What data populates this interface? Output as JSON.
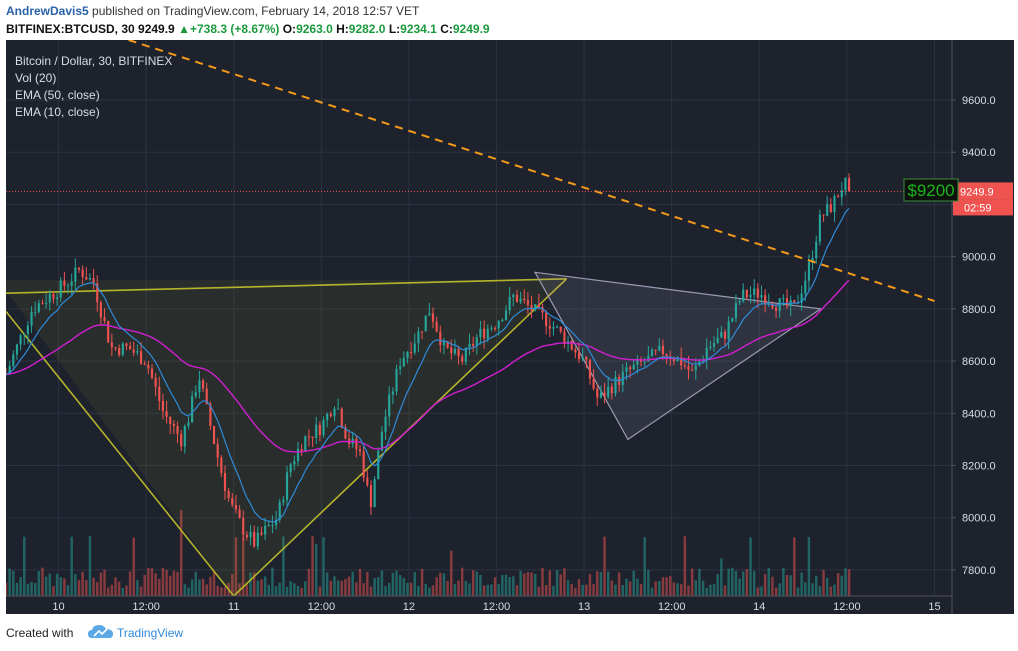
{
  "header": {
    "author": "AndrewDavis5",
    "published": "published on TradingView.com, February 14, 2018 12:57 VET",
    "symbol": "BITFINEX:BTCUSD, 30",
    "last": "9249.9",
    "change_arrow": "▲",
    "change": "+738.3 (+8.67%)",
    "o_label": "O:",
    "o": "9263.0",
    "h_label": "H:",
    "h": "9282.0",
    "l_label": "L:",
    "l": "9234.1",
    "c_label": "C:",
    "c": "9249.9"
  },
  "legend": {
    "title": "Bitcoin / Dollar, 30, BITFINEX",
    "vol": "Vol (20)",
    "ema50": "EMA (50, close)",
    "ema10": "EMA (10, close)"
  },
  "footer": {
    "created": "Created with",
    "brand": "TradingView",
    "logo_icon": "tradingview-cloud-icon"
  },
  "colors": {
    "background": "#1e222d",
    "grid": "#2d3240",
    "up": "#26a69a",
    "down": "#ef5350",
    "ema10": "#2f8bd8",
    "ema50": "#d11fd1",
    "trend": "#f49a1b",
    "pattern": "#b5b52a",
    "triangle": "#9a9ab0"
  },
  "annotation": {
    "text": "$9200",
    "color": "#1bb51b"
  },
  "chart_data": {
    "type": "candlestick",
    "symbol": "BITFINEX:BTCUSD",
    "interval": "30",
    "x_ticks": [
      "10",
      "12:00",
      "11",
      "12:00",
      "12",
      "12:00",
      "13",
      "12:00",
      "14",
      "12:00",
      "15"
    ],
    "y_ticks": [
      7800,
      8000,
      8200,
      8400,
      8600,
      8800,
      9000,
      9200,
      9400,
      9600
    ],
    "y_tick_labels": [
      "7800.0",
      "8000.0",
      "8200.0",
      "8400.0",
      "8600.0",
      "8800.0",
      "9000.0",
      "9200.0",
      "9400.0",
      "9600.0"
    ],
    "ylim": [
      7700,
      9830
    ],
    "x_range_days": [
      9.7,
      15.1
    ],
    "last_price": 9249.9,
    "last_price_label": "9249.9",
    "countdown": "02:59",
    "price_path": [
      [
        9.7,
        8550
      ],
      [
        9.85,
        8800
      ],
      [
        9.95,
        8850
      ],
      [
        10.05,
        8900
      ],
      [
        10.12,
        8950
      ],
      [
        10.2,
        8900
      ],
      [
        10.3,
        8650
      ],
      [
        10.4,
        8650
      ],
      [
        10.5,
        8600
      ],
      [
        10.55,
        8500
      ],
      [
        10.6,
        8400
      ],
      [
        10.7,
        8300
      ],
      [
        10.75,
        8400
      ],
      [
        10.8,
        8550
      ],
      [
        10.85,
        8400
      ],
      [
        10.92,
        8200
      ],
      [
        10.98,
        8050
      ],
      [
        11.05,
        7960
      ],
      [
        11.12,
        7900
      ],
      [
        11.18,
        7950
      ],
      [
        11.25,
        8000
      ],
      [
        11.32,
        8200
      ],
      [
        11.4,
        8300
      ],
      [
        11.5,
        8350
      ],
      [
        11.58,
        8450
      ],
      [
        11.65,
        8300
      ],
      [
        11.72,
        8250
      ],
      [
        11.78,
        8050
      ],
      [
        11.85,
        8350
      ],
      [
        11.95,
        8600
      ],
      [
        12.05,
        8700
      ],
      [
        12.12,
        8800
      ],
      [
        12.2,
        8650
      ],
      [
        12.3,
        8600
      ],
      [
        12.4,
        8700
      ],
      [
        12.5,
        8750
      ],
      [
        12.6,
        8850
      ],
      [
        12.7,
        8800
      ],
      [
        12.8,
        8750
      ],
      [
        12.9,
        8680
      ],
      [
        13.0,
        8600
      ],
      [
        13.08,
        8450
      ],
      [
        13.15,
        8500
      ],
      [
        13.25,
        8560
      ],
      [
        13.35,
        8600
      ],
      [
        13.45,
        8640
      ],
      [
        13.55,
        8600
      ],
      [
        13.62,
        8550
      ],
      [
        13.7,
        8650
      ],
      [
        13.8,
        8700
      ],
      [
        13.9,
        8850
      ],
      [
        14.0,
        8860
      ],
      [
        14.1,
        8820
      ],
      [
        14.2,
        8800
      ],
      [
        14.28,
        8950
      ],
      [
        14.35,
        9150
      ],
      [
        14.42,
        9200
      ],
      [
        14.48,
        9280
      ],
      [
        14.53,
        9249.9
      ]
    ],
    "ema10_label": "EMA (10, close)",
    "ema50_label": "EMA (50, close)",
    "volume_label": "Vol (20)",
    "drawings": [
      "orange dashed descending trendline",
      "inverse head-and-shoulders pattern",
      "grey triangle pattern"
    ]
  }
}
